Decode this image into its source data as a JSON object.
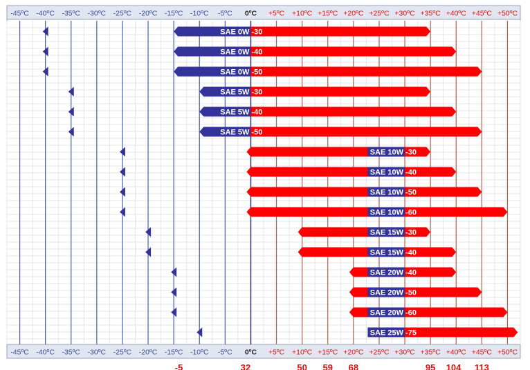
{
  "chart_data": {
    "type": "bar",
    "title": "",
    "xlabel": "",
    "ylabel": "",
    "x_unit": "°C",
    "xlim": [
      -47.5,
      52.5
    ],
    "grid": true,
    "legend": "none",
    "x_ticks": [
      -45,
      -40,
      -35,
      -30,
      -25,
      -20,
      -15,
      -10,
      -5,
      0,
      5,
      10,
      15,
      20,
      25,
      30,
      35,
      40,
      45,
      50
    ],
    "x_tick_labels": [
      "-45ºC",
      "-40ºC",
      "-35ºC",
      "-30ºC",
      "-25ºC",
      "-20ºC",
      "-15ºC",
      "-10ºC",
      "-5ºC",
      "0ºC",
      "+5ºC",
      "+10ºC",
      "+15ºC",
      "+20ºC",
      "+25ºC",
      "+30ºC",
      "+35ºC",
      "+40ºC",
      "+45ºC",
      "+50ºC"
    ],
    "bottom_numbers": [
      {
        "text": "-5",
        "at": -14
      },
      {
        "text": "32",
        "at": -1
      },
      {
        "text": "50",
        "at": 10
      },
      {
        "text": "59",
        "at": 15
      },
      {
        "text": "68",
        "at": 20
      },
      {
        "text": "95",
        "at": 35
      },
      {
        "text": "104",
        "at": 39.5
      },
      {
        "text": "113",
        "at": 45
      }
    ],
    "series": [
      {
        "name": "SAE 0W-30",
        "winter": "SAE 0W",
        "summer": "-30",
        "marker": -40,
        "min": -15,
        "max": 35
      },
      {
        "name": "SAE 0W-40",
        "winter": "SAE 0W",
        "summer": "-40",
        "marker": -40,
        "min": -15,
        "max": 40
      },
      {
        "name": "SAE 0W-50",
        "winter": "SAE 0W",
        "summer": "-50",
        "marker": -40,
        "min": -15,
        "max": 45
      },
      {
        "name": "SAE 5W-30",
        "winter": "SAE 5W",
        "summer": "-30",
        "marker": -35,
        "min": -10,
        "max": 35
      },
      {
        "name": "SAE 5W-40",
        "winter": "SAE 5W",
        "summer": "-40",
        "marker": -35,
        "min": -10,
        "max": 40
      },
      {
        "name": "SAE 5W-50",
        "winter": "SAE 5W",
        "summer": "-50",
        "marker": -35,
        "min": -10,
        "max": 45
      },
      {
        "name": "SAE 10W-30",
        "winter": "SAE 10W",
        "summer": "-30",
        "marker": -25,
        "min": 0,
        "max": 35
      },
      {
        "name": "SAE 10W-40",
        "winter": "SAE 10W",
        "summer": "-40",
        "marker": -25,
        "min": 0,
        "max": 40
      },
      {
        "name": "SAE 10W-50",
        "winter": "SAE 10W",
        "summer": "-50",
        "marker": -25,
        "min": 0,
        "max": 45
      },
      {
        "name": "SAE 10W-60",
        "winter": "SAE 10W",
        "summer": "-60",
        "marker": -25,
        "min": 0,
        "max": 50
      },
      {
        "name": "SAE 15W-30",
        "winter": "SAE 15W",
        "summer": "-30",
        "marker": -20,
        "min": 10,
        "max": 35
      },
      {
        "name": "SAE 15W-40",
        "winter": "SAE 15W",
        "summer": "-40",
        "marker": -20,
        "min": 10,
        "max": 40
      },
      {
        "name": "SAE 20W-40",
        "winter": "SAE 20W",
        "summer": "-40",
        "marker": -15,
        "min": 20,
        "max": 40
      },
      {
        "name": "SAE 20W-50",
        "winter": "SAE 20W",
        "summer": "-50",
        "marker": -15,
        "min": 20,
        "max": 45
      },
      {
        "name": "SAE 20W-60",
        "winter": "SAE 20W",
        "summer": "-60",
        "marker": -15,
        "min": 20,
        "max": 50
      },
      {
        "name": "SAE 25W-75",
        "winter": "SAE 25W",
        "summer": "-75",
        "marker": -10,
        "min": 25,
        "max": 52
      }
    ]
  },
  "colors": {
    "winter": "#333399",
    "summer": "#ff0000",
    "cold_grid": "#4a5fa8",
    "warm_grid": "#b5604a",
    "header_bg": "#e2e6f0",
    "cold_label": "#3a4fa0",
    "warm_label": "#e01010",
    "zero_label": "#222222",
    "bottom_numbers": "#e01010"
  }
}
